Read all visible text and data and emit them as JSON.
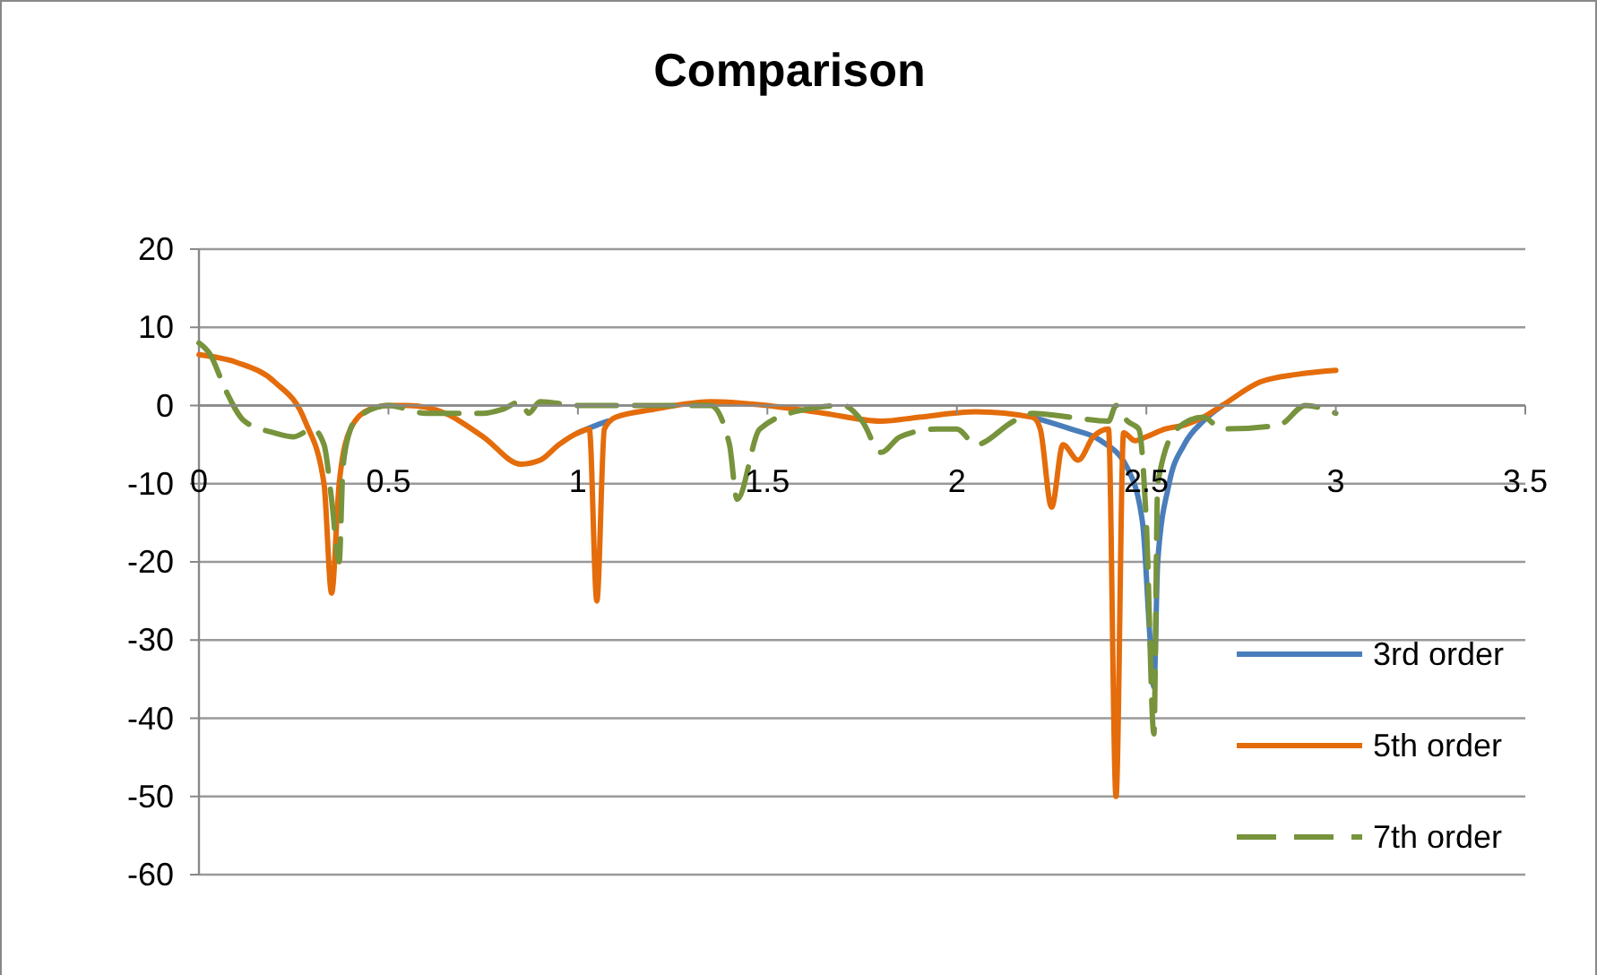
{
  "chart_data": {
    "type": "line",
    "title": "Comparison",
    "xlim": [
      0,
      3.5
    ],
    "xticks": [
      0,
      0.5,
      1,
      1.5,
      2,
      2.5,
      3,
      3.5
    ],
    "ylim": [
      -60,
      20
    ],
    "yticks": [
      -60,
      -50,
      -40,
      -30,
      -20,
      -10,
      0,
      10,
      20
    ],
    "grid": "y",
    "legend": "right",
    "series": [
      {
        "name": "3rd order",
        "color": "#4a7ebb",
        "line_style": "solid",
        "x": [
          1.0,
          1.05,
          1.08,
          1.1,
          2.2,
          2.3,
          2.38,
          2.45,
          2.49,
          2.51,
          2.52,
          2.53,
          2.56,
          2.6,
          2.65,
          2.7
        ],
        "values": [
          -3.5,
          -2.5,
          -2,
          null,
          -1.5,
          -3,
          -4.5,
          -8,
          -15,
          -30,
          -36,
          -20,
          -10,
          -5,
          -2,
          0
        ]
      },
      {
        "name": "5th order",
        "color": "#e46c0a",
        "line_style": "solid",
        "x": [
          0,
          0.1,
          0.2,
          0.28,
          0.33,
          0.35,
          0.37,
          0.4,
          0.45,
          0.5,
          0.55,
          0.65,
          0.75,
          0.85,
          0.9,
          0.95,
          1.0,
          1.03,
          1.05,
          1.07,
          1.1,
          1.2,
          1.35,
          1.5,
          1.65,
          1.8,
          1.9,
          2.05,
          2.2,
          2.22,
          2.25,
          2.28,
          2.32,
          2.36,
          2.4,
          2.42,
          2.44,
          2.47,
          2.5,
          2.55,
          2.6,
          2.65,
          2.7,
          2.8,
          2.9,
          3.0
        ],
        "values": [
          6.5,
          5.5,
          3,
          -2,
          -10,
          -24,
          -10,
          -3,
          -0.5,
          0,
          0,
          -1,
          -4,
          -7.5,
          -7,
          -5,
          -3.5,
          -3,
          -25,
          -3,
          -1.5,
          -0.5,
          0.5,
          0,
          -1,
          -2,
          -1.5,
          -0.8,
          -1.5,
          -3,
          -13,
          -5,
          -7,
          -4,
          -3,
          -50,
          -3.5,
          -4.5,
          -4,
          -3,
          -2.5,
          -1.5,
          0,
          3,
          4,
          4.5
        ]
      },
      {
        "name": "7th order",
        "color": "#77933c",
        "line_style": "dashed",
        "x": [
          0,
          0.03,
          0.07,
          0.12,
          0.2,
          0.25,
          0.3,
          0.33,
          0.35,
          0.37,
          0.38,
          0.4,
          0.42,
          0.5,
          0.6,
          0.75,
          0.8,
          0.85,
          0.87,
          0.9,
          1.0,
          1.15,
          1.35,
          1.4,
          1.42,
          1.48,
          1.6,
          1.7,
          1.75,
          1.8,
          1.85,
          1.95,
          2.0,
          2.05,
          2.15,
          2.2,
          2.3,
          2.4,
          2.42,
          2.45,
          2.48,
          2.5,
          2.52,
          2.53,
          2.58,
          2.65,
          2.7,
          2.85,
          2.92,
          3.0
        ],
        "values": [
          8,
          6.5,
          2,
          -2,
          -3.5,
          -4,
          -3,
          -5,
          -12,
          -20,
          -8,
          -3,
          -1.5,
          0,
          -1,
          -1,
          -0.5,
          0.5,
          -1,
          0.5,
          0,
          0,
          0,
          -5,
          -12,
          -3,
          -0.5,
          0,
          -2,
          -6,
          -4,
          -3,
          -3,
          -5,
          -2,
          -1,
          -1.5,
          -2,
          0,
          -2,
          -3,
          -15,
          -42,
          -10,
          -3,
          -1.5,
          -3,
          -2.5,
          0,
          -1
        ]
      }
    ]
  }
}
